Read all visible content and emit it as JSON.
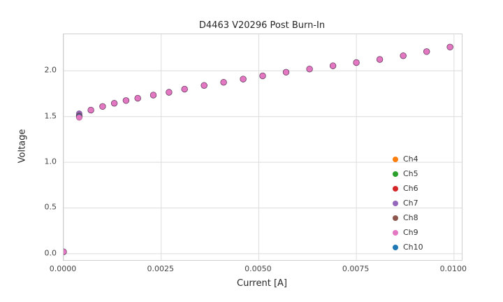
{
  "chart_data": {
    "type": "scatter",
    "title": "D4463 V20296 Post Burn-In",
    "xlabel": "Current [A]",
    "ylabel": "Voltage",
    "xlim": [
      0.0,
      0.0102
    ],
    "ylim": [
      -0.07,
      2.4
    ],
    "xticks": [
      0.0,
      0.0025,
      0.005,
      0.0075,
      0.01
    ],
    "xtick_labels": [
      "0.0000",
      "0.0025",
      "0.0050",
      "0.0075",
      "0.0100"
    ],
    "yticks": [
      0.0,
      0.5,
      1.0,
      1.5,
      2.0
    ],
    "ytick_labels": [
      "0.0",
      "0.5",
      "1.0",
      "1.5",
      "2.0"
    ],
    "grid": true,
    "legend_position": "lower right",
    "x": [
      0.0,
      0.0004,
      0.0007,
      0.001,
      0.0013,
      0.0016,
      0.0019,
      0.0023,
      0.0027,
      0.0031,
      0.0036,
      0.0041,
      0.0046,
      0.0051,
      0.0057,
      0.0063,
      0.0069,
      0.0075,
      0.0081,
      0.0087,
      0.0093,
      0.0099
    ],
    "base_voltage": [
      0.02,
      1.5,
      1.57,
      1.61,
      1.645,
      1.675,
      1.7,
      1.735,
      1.765,
      1.8,
      1.84,
      1.875,
      1.91,
      1.945,
      1.985,
      2.02,
      2.055,
      2.09,
      2.125,
      2.165,
      2.21,
      2.26
    ],
    "series": [
      {
        "name": "Ch4",
        "color": "#ff7f0e",
        "first_v": 1.502
      },
      {
        "name": "Ch5",
        "color": "#2ca02c",
        "first_v": 1.512
      },
      {
        "name": "Ch6",
        "color": "#d62728",
        "first_v": 1.498
      },
      {
        "name": "Ch7",
        "color": "#9467bd",
        "first_v": 1.532
      },
      {
        "name": "Ch8",
        "color": "#8c564b",
        "first_v": 1.508
      },
      {
        "name": "Ch9",
        "color": "#e377c2",
        "first_v": 1.49
      },
      {
        "name": "Ch10",
        "color": "#1f77b4",
        "first_v": 1.5
      }
    ],
    "draw_order": [
      "Ch4",
      "Ch5",
      "Ch6",
      "Ch7",
      "Ch8",
      "Ch10",
      "Ch9"
    ]
  }
}
